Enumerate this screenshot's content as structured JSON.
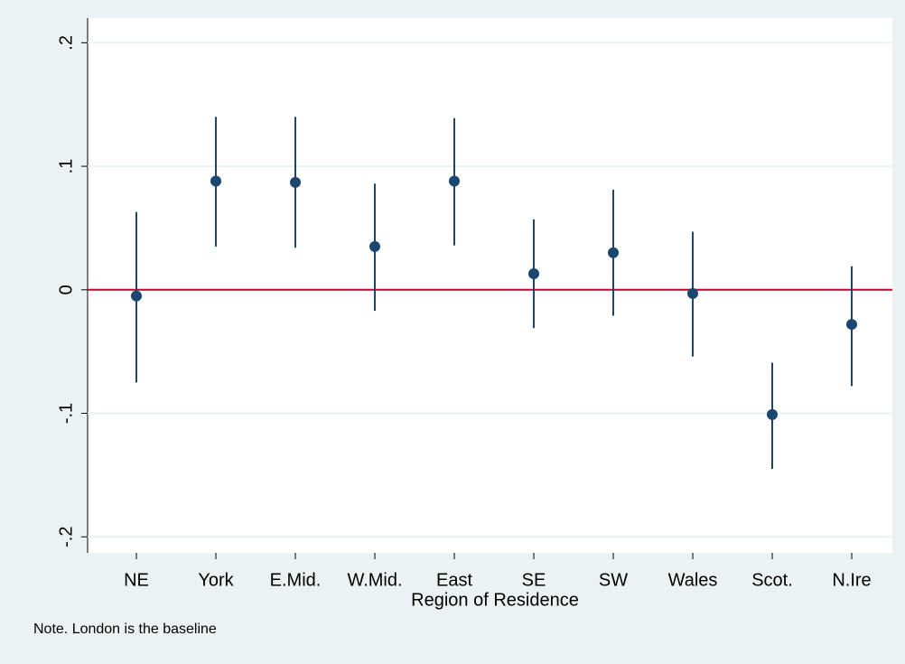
{
  "chart_data": {
    "type": "errorbar",
    "x_label": "Region of Residence",
    "note": "Note. London is the baseline",
    "categories": [
      "NE",
      "York",
      "E.Mid.",
      "W.Mid.",
      "East",
      "SE",
      "SW",
      "Wales",
      "Scot.",
      "N.Ire"
    ],
    "values": [
      -0.005,
      0.088,
      0.087,
      0.035,
      0.088,
      0.013,
      0.03,
      -0.003,
      -0.101,
      -0.028
    ],
    "lower": [
      -0.075,
      0.035,
      0.034,
      -0.017,
      0.036,
      -0.031,
      -0.021,
      -0.054,
      -0.145,
      -0.078
    ],
    "upper": [
      0.063,
      0.14,
      0.14,
      0.086,
      0.139,
      0.057,
      0.081,
      0.047,
      -0.059,
      0.019
    ],
    "color": "#1a476f",
    "reference_line": {
      "value": 0,
      "color": "#c10534"
    },
    "ylim": [
      -0.213,
      0.22
    ],
    "yticks": [
      {
        "value": -0.2,
        "label": "-.2"
      },
      {
        "value": -0.1,
        "label": "-.1"
      },
      0,
      {
        "value": 0.1,
        "label": ".1"
      },
      {
        "value": 0.2,
        "label": ".2"
      }
    ],
    "grid": true
  }
}
